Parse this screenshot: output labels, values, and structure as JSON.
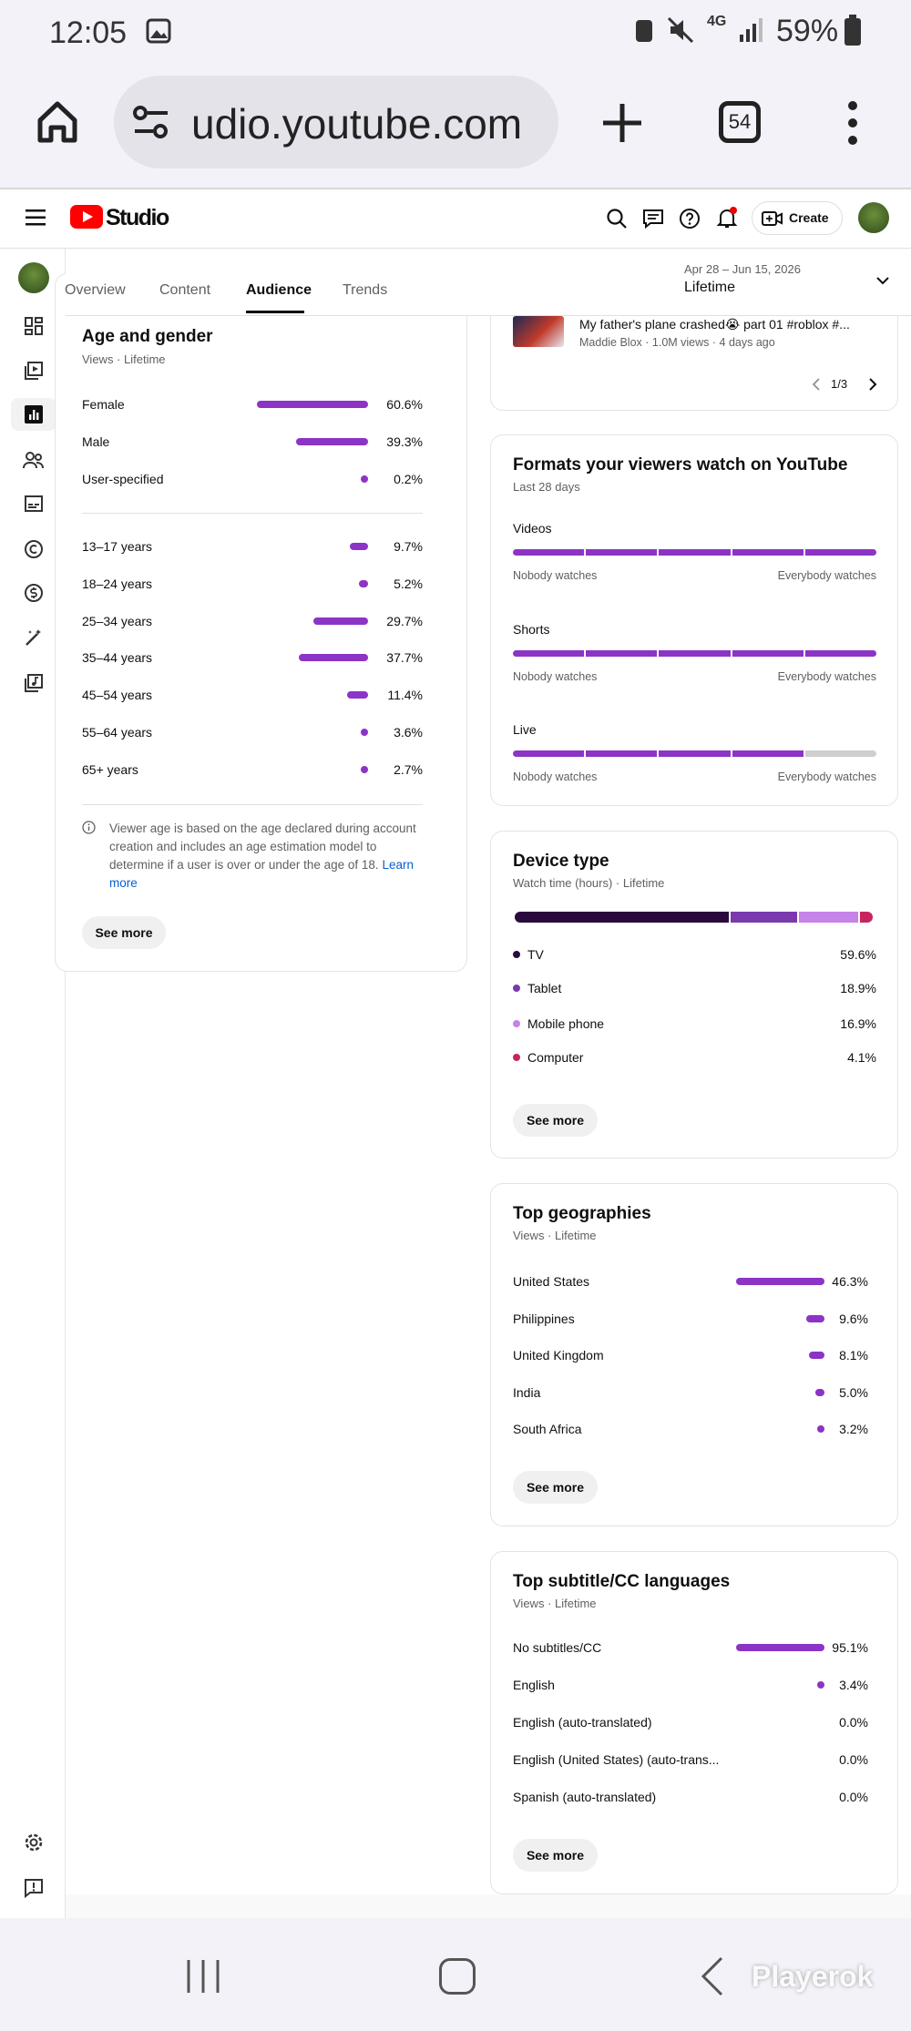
{
  "status_bar": {
    "time": "12:05",
    "network": "4G",
    "battery": "59%"
  },
  "browser": {
    "url": "udio.youtube.com",
    "tab_count": "54"
  },
  "header": {
    "logo": "Studio",
    "create": "Create"
  },
  "tabs": [
    "Overview",
    "Content",
    "Audience",
    "Trends"
  ],
  "date_range": {
    "range": "Apr 28 – Jun 15, 2026",
    "label": "Lifetime"
  },
  "age_gender": {
    "title": "Age and gender",
    "subtitle": "Views · Lifetime",
    "gender": [
      {
        "label": "Female",
        "value": 60.6,
        "value_label": "60.6%"
      },
      {
        "label": "Male",
        "value": 39.3,
        "value_label": "39.3%"
      },
      {
        "label": "User-specified",
        "value": 0.2,
        "value_label": "0.2%"
      }
    ],
    "age": [
      {
        "label": "13–17 years",
        "value": 9.7,
        "value_label": "9.7%"
      },
      {
        "label": "18–24 years",
        "value": 5.2,
        "value_label": "5.2%"
      },
      {
        "label": "25–34 years",
        "value": 29.7,
        "value_label": "29.7%"
      },
      {
        "label": "35–44 years",
        "value": 37.7,
        "value_label": "37.7%"
      },
      {
        "label": "45–54 years",
        "value": 11.4,
        "value_label": "11.4%"
      },
      {
        "label": "55–64 years",
        "value": 3.6,
        "value_label": "3.6%"
      },
      {
        "label": "65+ years",
        "value": 2.7,
        "value_label": "2.7%"
      }
    ],
    "note": "Viewer age is based on the age declared during account creation and includes an age estimation model to determine if a user is over or under the age of 18.",
    "link": "Learn more",
    "button": "See more"
  },
  "top_video": {
    "title": "My father's plane crashed😭 part 01 #roblox #...",
    "meta": "Maddie Blox · 1.0M views · 4 days ago",
    "pager": "1/3"
  },
  "formats": {
    "title": "Formats your viewers watch on YouTube",
    "subtitle": "Last 28 days",
    "min_label": "Nobody watches",
    "max_label": "Everybody watches",
    "rows": [
      {
        "label": "Videos",
        "level": 5
      },
      {
        "label": "Shorts",
        "level": 5
      },
      {
        "label": "Live",
        "level": 4
      }
    ]
  },
  "device_type": {
    "title": "Device type",
    "subtitle": "Watch time (hours) · Lifetime",
    "items": [
      {
        "label": "TV",
        "value": 59.6,
        "value_label": "59.6%",
        "color": "#2b0a3d"
      },
      {
        "label": "Tablet",
        "value": 18.9,
        "value_label": "18.9%",
        "color": "#7a3aae"
      },
      {
        "label": "Mobile phone",
        "value": 16.9,
        "value_label": "16.9%",
        "color": "#c683e8"
      },
      {
        "label": "Computer",
        "value": 4.1,
        "value_label": "4.1%",
        "color": "#c8245f"
      }
    ],
    "button": "See more"
  },
  "geographies": {
    "title": "Top geographies",
    "subtitle": "Views · Lifetime",
    "items": [
      {
        "label": "United States",
        "value": 46.3,
        "value_label": "46.3%"
      },
      {
        "label": "Philippines",
        "value": 9.6,
        "value_label": "9.6%"
      },
      {
        "label": "United Kingdom",
        "value": 8.1,
        "value_label": "8.1%"
      },
      {
        "label": "India",
        "value": 5.0,
        "value_label": "5.0%"
      },
      {
        "label": "South Africa",
        "value": 3.2,
        "value_label": "3.2%"
      }
    ],
    "button": "See more"
  },
  "subtitles": {
    "title": "Top subtitle/CC languages",
    "subtitle": "Views · Lifetime",
    "items": [
      {
        "label": "No subtitles/CC",
        "value": 95.1,
        "value_label": "95.1%"
      },
      {
        "label": "English",
        "value": 3.4,
        "value_label": "3.4%"
      },
      {
        "label": "English (auto-translated)",
        "value": 0.0,
        "value_label": "0.0%"
      },
      {
        "label": "English (United States) (auto-trans...",
        "value": 0.0,
        "value_label": "0.0%"
      },
      {
        "label": "Spanish (auto-translated)",
        "value": 0.0,
        "value_label": "0.0%"
      }
    ],
    "button": "See more"
  },
  "watermark": "Playerok"
}
